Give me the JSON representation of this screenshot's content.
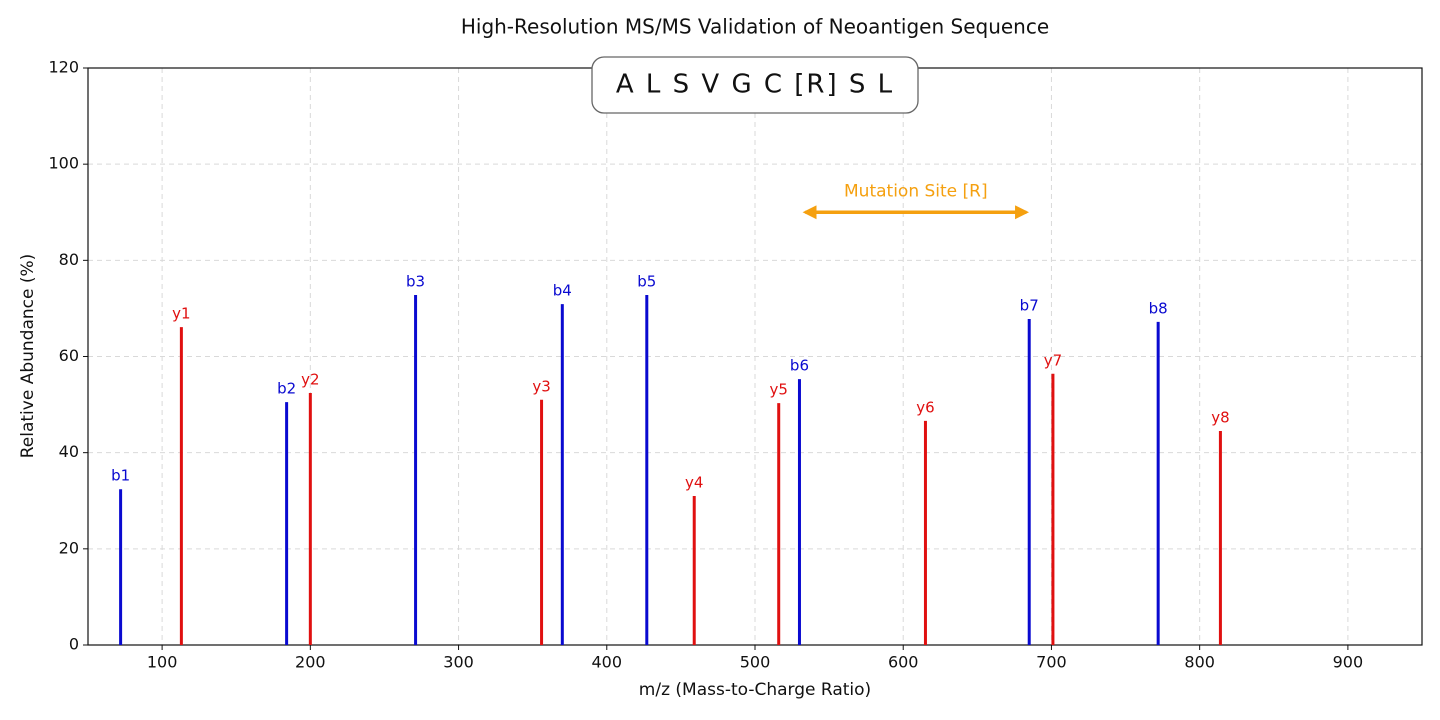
{
  "chart_data": {
    "type": "stem",
    "title": "High-Resolution MS/MS Validation of Neoantigen Sequence",
    "x_label": "m/z (Mass-to-Charge Ratio)",
    "y_label": "Relative Abundance (%)",
    "sequence_label": "A L S V G C [R] S L",
    "xlim": [
      50,
      950
    ],
    "ylim": [
      0,
      120
    ],
    "xticks": [
      100,
      200,
      300,
      400,
      500,
      600,
      700,
      800,
      900
    ],
    "yticks": [
      0,
      20,
      40,
      60,
      80,
      100,
      120
    ],
    "grid": true,
    "series": [
      {
        "color": "#0a0ad0",
        "x": [
          72,
          184,
          271,
          370,
          427,
          530,
          685,
          772
        ],
        "values": [
          32.4,
          50.5,
          72.8,
          70.9,
          72.8,
          55.3,
          67.8,
          67.2
        ],
        "labels": [
          "b1",
          "b2",
          "b3",
          "b4",
          "b5",
          "b6",
          "b7",
          "b8"
        ]
      },
      {
        "color": "#e01010",
        "x": [
          113,
          200,
          356,
          459,
          516,
          615,
          701,
          814
        ],
        "values": [
          66.1,
          52.4,
          51,
          31,
          50.3,
          46.6,
          56.4,
          44.5
        ],
        "labels": [
          "y1",
          "y2",
          "y3",
          "y4",
          "y5",
          "y6",
          "y7",
          "y8"
        ]
      }
    ],
    "annotations": [
      {
        "text": "Mutation Site [R]",
        "x": [
          534,
          683
        ],
        "y": 90,
        "color": "#f5a00f"
      }
    ]
  }
}
